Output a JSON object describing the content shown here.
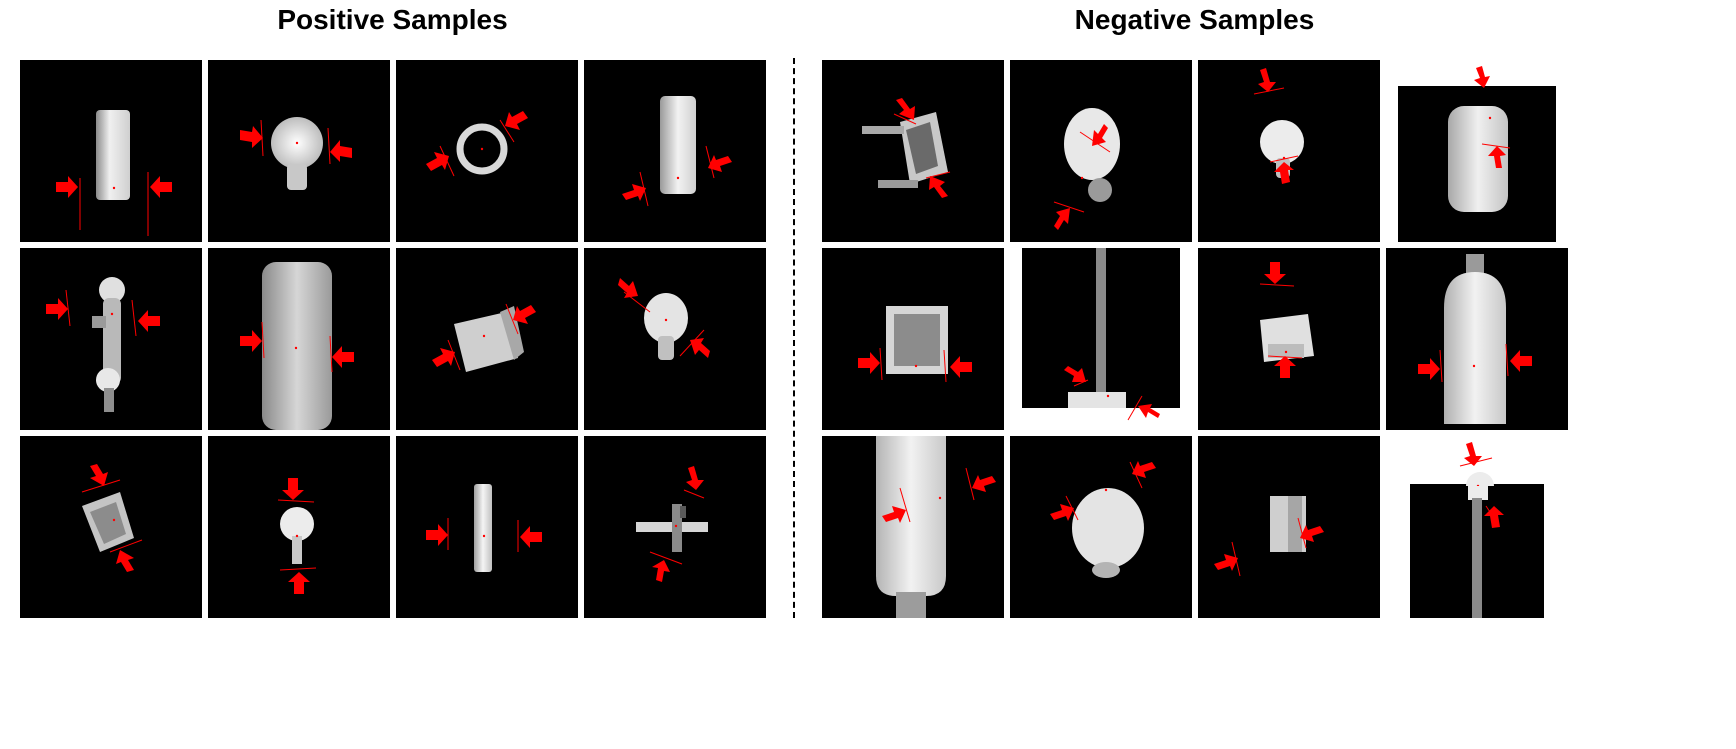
{
  "titles": {
    "positive": "Positive Samples",
    "negative": "Negative Samples"
  },
  "colors": {
    "background": "#000000",
    "arrow": "#ff0000",
    "object": "#e6e6e6"
  },
  "icons": {
    "marker": "red-arrow-icon",
    "cut_line": "red-line"
  },
  "groups": [
    {
      "name": "positive",
      "tiles": 12
    },
    {
      "name": "negative",
      "tiles": 12
    }
  ]
}
